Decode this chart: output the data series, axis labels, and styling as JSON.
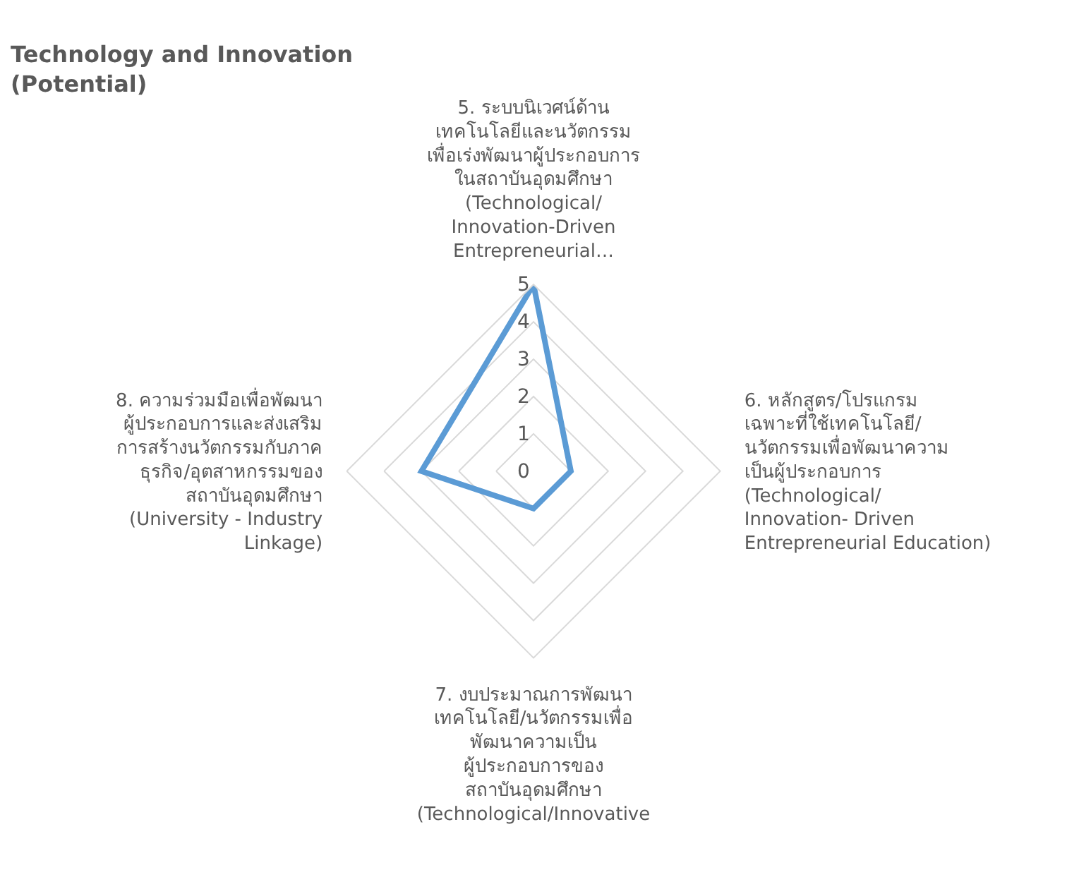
{
  "chart_data": {
    "type": "radar",
    "title": "Technology and Innovation\n(Potential)",
    "categories": [
      "5. ระบบนิเวศน์ด้าน\nเทคโนโลยีและนวัตกรรม\nเพื่อเร่งพัฒนาผู้ประกอบการ\nในสถาบันอุดมศึกษา\n(Technological/\nInnovation-Driven\nEntrepreneurial…",
      "6. หลักสูตร/โปรแกรม\nเฉพาะที่ใช้เทคโนโลยี/\nนวัตกรรมเพื่อพัฒนาความ\nเป็นผู้ประกอบการ\n(Technological/\nInnovation- Driven\nEntrepreneurial Education)",
      "7. งบประมาณการพัฒนา\nเทคโนโลยี/นวัตกรรมเพื่อ\nพัฒนาความเป็น\nผู้ประกอบการของ\nสถาบันอุดมศึกษา\n(Technological/Innovative",
      "8. ความร่วมมือเพื่อพัฒนา\nผู้ประกอบการและส่งเสริม\nการสร้างนวัตกรรมกับภาค\nธุรกิจ/อุตสาหกรรมของ\nสถาบันอุดมศึกษา\n(University - Industry\nLinkage)"
    ],
    "series": [
      {
        "color": "#5b9bd5",
        "values": [
          5,
          1,
          1,
          3
        ]
      }
    ],
    "ylim": [
      0,
      5
    ],
    "yticks": [
      0,
      1,
      2,
      3,
      4,
      5
    ],
    "grid": true,
    "marker": "none",
    "line_style": "solid"
  }
}
